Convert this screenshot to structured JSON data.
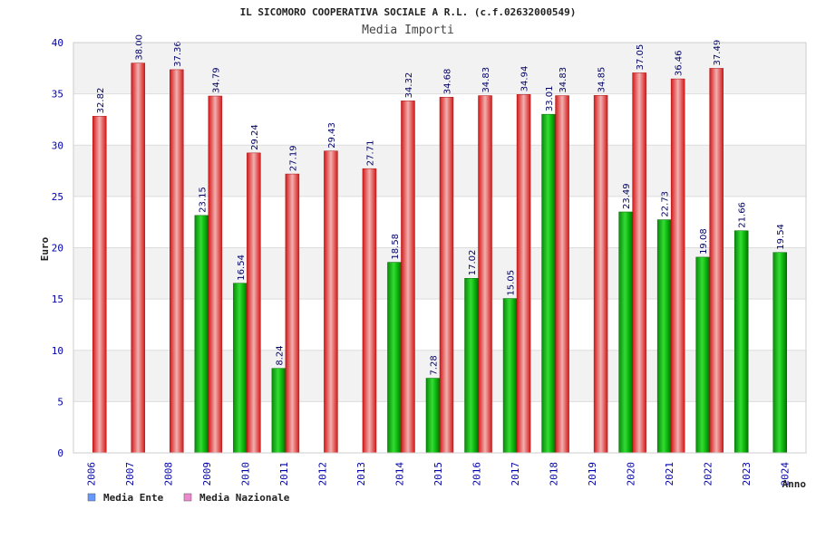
{
  "chart_data": {
    "type": "bar",
    "title": "IL SICOMORO COOPERATIVA SOCIALE A R.L. (c.f.02632000549)",
    "subtitle": "Media Importi",
    "xlabel": "Anno",
    "ylabel": "Euro",
    "ylim": [
      0,
      40
    ],
    "yticks": [
      "0",
      "5",
      "10",
      "15",
      "20",
      "25",
      "30",
      "35",
      "40"
    ],
    "grid": true,
    "legend_position": "bottom-left",
    "categories": [
      "2006",
      "2007",
      "2008",
      "2009",
      "2010",
      "2011",
      "2012",
      "2013",
      "2014",
      "2015",
      "2016",
      "2017",
      "2018",
      "2019",
      "2020",
      "2021",
      "2022",
      "2023",
      "2024"
    ],
    "series": [
      {
        "name": "Media Ente",
        "color": "#00aa00",
        "legend_color": "#6699ff",
        "values": [
          null,
          null,
          null,
          23.15,
          16.54,
          8.24,
          null,
          null,
          18.58,
          7.28,
          17.02,
          15.05,
          33.01,
          null,
          23.49,
          22.73,
          19.08,
          21.66,
          19.54
        ],
        "labels": [
          null,
          null,
          null,
          "23.15",
          "16.54",
          "8.24",
          null,
          null,
          "18.58",
          "7.28",
          "17.02",
          "15.05",
          "33.01",
          null,
          "23.49",
          "22.73",
          "19.08",
          "21.66",
          "19.54"
        ]
      },
      {
        "name": "Media Nazionale",
        "color": "#ee2222",
        "legend_color": "#ee88cc",
        "values": [
          32.82,
          38.0,
          37.36,
          34.79,
          29.24,
          27.19,
          29.43,
          27.71,
          34.32,
          34.68,
          34.83,
          34.94,
          34.83,
          34.85,
          37.05,
          36.46,
          37.49,
          null,
          null
        ],
        "labels": [
          "32.82",
          "38.00",
          "37.36",
          "34.79",
          "29.24",
          "27.19",
          "29.43",
          "27.71",
          "34.32",
          "34.68",
          "34.83",
          "34.94",
          "34.83",
          "34.85",
          "37.05",
          "36.46",
          "37.49",
          null,
          null
        ]
      }
    ]
  }
}
